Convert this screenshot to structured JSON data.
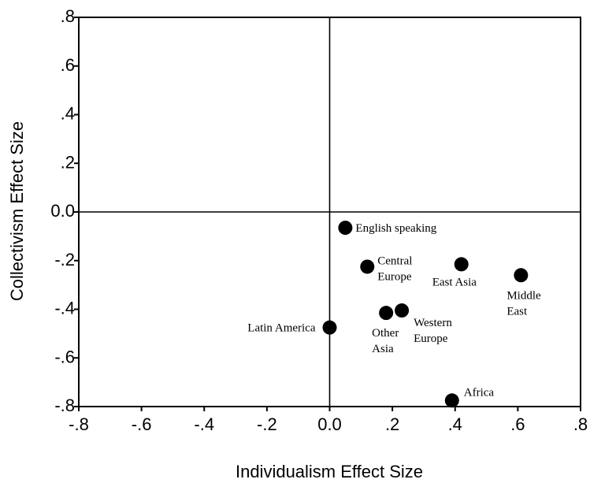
{
  "chart_data": {
    "type": "scatter",
    "xlabel": "Individualism Effect Size",
    "ylabel": "Collectivism Effect Size",
    "xlim": [
      -0.8,
      0.8
    ],
    "ylim": [
      -0.8,
      0.8
    ],
    "grid": false,
    "reference_lines": {
      "x": 0.0,
      "y": 0.0
    },
    "marker_color": "#000000",
    "x_tick_labels": [
      "-.8",
      "-.6",
      "-.4",
      "-.2",
      "0.0",
      ".2",
      ".4",
      ".6",
      ".8"
    ],
    "x_tick_values": [
      -0.8,
      -0.6,
      -0.4,
      -0.2,
      0.0,
      0.2,
      0.4,
      0.6,
      0.8
    ],
    "y_tick_labels": [
      ".8",
      ".6",
      ".4",
      ".2",
      "0.0",
      "-.2",
      "-.4",
      "-.6",
      "-.8"
    ],
    "y_tick_values": [
      0.8,
      0.6,
      0.4,
      0.2,
      0.0,
      -0.2,
      -0.4,
      -0.6,
      -0.8
    ],
    "points": [
      {
        "label_lines": [
          "English speaking"
        ],
        "label_side": "right",
        "x": 0.05,
        "y": -0.065
      },
      {
        "label_lines": [
          "Central",
          "Europe"
        ],
        "label_side": "right",
        "x": 0.12,
        "y": -0.225
      },
      {
        "label_lines": [
          "East Asia"
        ],
        "label_side": "below",
        "x": 0.42,
        "y": -0.215
      },
      {
        "label_lines": [
          "Middle",
          "East"
        ],
        "label_side": "below",
        "x": 0.61,
        "y": -0.26
      },
      {
        "label_lines": [
          "Latin America"
        ],
        "label_side": "left",
        "x": 0.0,
        "y": -0.475
      },
      {
        "label_lines": [
          "Other",
          "Asia"
        ],
        "label_side": "below",
        "x": 0.18,
        "y": -0.415
      },
      {
        "label_lines": [
          "Western",
          "Europe"
        ],
        "label_side": "belowright",
        "x": 0.23,
        "y": -0.405
      },
      {
        "label_lines": [
          "Africa"
        ],
        "label_side": "aboveright",
        "x": 0.39,
        "y": -0.775
      }
    ]
  }
}
